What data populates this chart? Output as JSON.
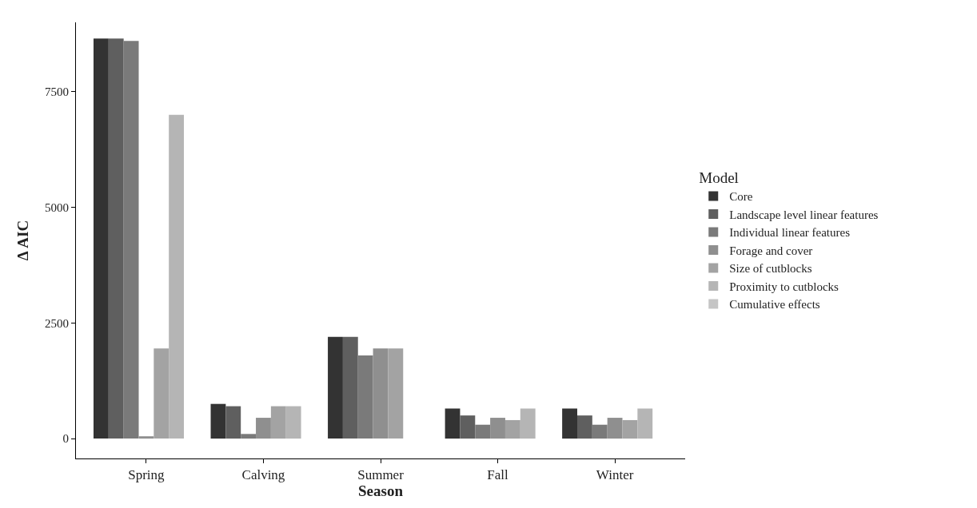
{
  "chart_data": {
    "type": "bar",
    "xlabel": "Season",
    "ylabel": "Δ AIC",
    "legend_title": "Model",
    "categories": [
      "Spring",
      "Calving",
      "Summer",
      "Fall",
      "Winter"
    ],
    "series": [
      {
        "name": "Core",
        "color": "#333333",
        "values": [
          8650,
          750,
          2200,
          650,
          650
        ]
      },
      {
        "name": "Landscape level linear features",
        "color": "#5f5f5f",
        "values": [
          8650,
          700,
          2200,
          500,
          500
        ]
      },
      {
        "name": "Individual linear features",
        "color": "#7a7a7a",
        "values": [
          8600,
          100,
          1800,
          300,
          300
        ]
      },
      {
        "name": "Forage and cover",
        "color": "#8f8f8f",
        "values": [
          50,
          450,
          1950,
          450,
          450
        ]
      },
      {
        "name": "Size of cutblocks",
        "color": "#a3a3a3",
        "values": [
          1950,
          700,
          1950,
          400,
          400
        ]
      },
      {
        "name": "Proximity to cutblocks",
        "color": "#b5b5b5",
        "values": [
          7000,
          700,
          0,
          650,
          650
        ]
      },
      {
        "name": "Cumulative effects",
        "color": "#c5c5c5",
        "values": [
          null,
          null,
          null,
          null,
          null
        ]
      }
    ],
    "ylim": [
      -430,
      9000
    ],
    "yticks": [
      0,
      2500,
      5000,
      7500
    ],
    "legend": "right"
  }
}
